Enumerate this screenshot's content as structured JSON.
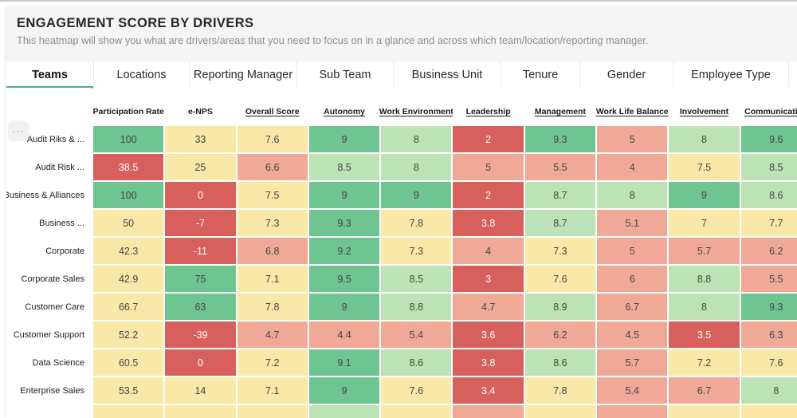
{
  "header": {
    "title": "ENGAGEMENT SCORE BY DRIVERS",
    "subtitle": "This heatmap will show you what are drivers/areas that you need to focus on in a glance and across which team/location/reporting manager."
  },
  "tabs": {
    "active": "Teams",
    "items": [
      "Teams",
      "Locations",
      "Reporting Manager",
      "Sub Team",
      "Business Unit",
      "Tenure",
      "Gender",
      "Employee Type"
    ]
  },
  "icons": {
    "overflow": "···"
  },
  "colors": {
    "accent": "#4db380",
    "green": "#6ec591",
    "lightgreen": "#bde2b5",
    "yellow": "#f9e8a7",
    "salmon": "#f0a996",
    "red": "#d8605c"
  },
  "heatmap": {
    "columns": [
      {
        "label": "Participation Rate",
        "underlined": false
      },
      {
        "label": "e-NPS",
        "underlined": false
      },
      {
        "label": "Overall Score",
        "underlined": true
      },
      {
        "label": "Autonomy",
        "underlined": true
      },
      {
        "label": "Work Environment",
        "underlined": true
      },
      {
        "label": "Leadership",
        "underlined": true
      },
      {
        "label": "Management",
        "underlined": true
      },
      {
        "label": "Work Life Balance",
        "underlined": true
      },
      {
        "label": "Involvement",
        "underlined": true
      },
      {
        "label": "Communication",
        "underlined": true
      }
    ],
    "rows": [
      {
        "label": "Audit Riks & ...",
        "cells": [
          {
            "v": "100",
            "c": "green"
          },
          {
            "v": "33",
            "c": "yellow"
          },
          {
            "v": "7.6",
            "c": "yellow"
          },
          {
            "v": "9",
            "c": "green"
          },
          {
            "v": "8",
            "c": "lightgreen"
          },
          {
            "v": "2",
            "c": "red"
          },
          {
            "v": "9.3",
            "c": "green"
          },
          {
            "v": "5",
            "c": "salmon"
          },
          {
            "v": "8",
            "c": "lightgreen"
          },
          {
            "v": "9.6",
            "c": "green"
          }
        ]
      },
      {
        "label": "Audit Risk ...",
        "cells": [
          {
            "v": "38.5",
            "c": "red"
          },
          {
            "v": "25",
            "c": "yellow"
          },
          {
            "v": "6.6",
            "c": "salmon"
          },
          {
            "v": "8.5",
            "c": "lightgreen"
          },
          {
            "v": "8",
            "c": "lightgreen"
          },
          {
            "v": "5",
            "c": "salmon"
          },
          {
            "v": "5.5",
            "c": "salmon"
          },
          {
            "v": "4",
            "c": "salmon"
          },
          {
            "v": "7.5",
            "c": "yellow"
          },
          {
            "v": "8.5",
            "c": "lightgreen"
          }
        ]
      },
      {
        "label": "Business & Alliances",
        "cells": [
          {
            "v": "100",
            "c": "green"
          },
          {
            "v": "0",
            "c": "red"
          },
          {
            "v": "7.5",
            "c": "yellow"
          },
          {
            "v": "9",
            "c": "green"
          },
          {
            "v": "9",
            "c": "green"
          },
          {
            "v": "2",
            "c": "red"
          },
          {
            "v": "8.7",
            "c": "lightgreen"
          },
          {
            "v": "8",
            "c": "lightgreen"
          },
          {
            "v": "9",
            "c": "green"
          },
          {
            "v": "8.6",
            "c": "lightgreen"
          }
        ]
      },
      {
        "label": "Business ...",
        "cells": [
          {
            "v": "50",
            "c": "yellow"
          },
          {
            "v": "-7",
            "c": "red"
          },
          {
            "v": "7.3",
            "c": "yellow"
          },
          {
            "v": "9.3",
            "c": "green"
          },
          {
            "v": "7.8",
            "c": "yellow"
          },
          {
            "v": "3.8",
            "c": "red"
          },
          {
            "v": "8.7",
            "c": "lightgreen"
          },
          {
            "v": "5.1",
            "c": "salmon"
          },
          {
            "v": "7",
            "c": "yellow"
          },
          {
            "v": "7.7",
            "c": "yellow"
          }
        ]
      },
      {
        "label": "Corporate",
        "cells": [
          {
            "v": "42.3",
            "c": "yellow"
          },
          {
            "v": "-11",
            "c": "red"
          },
          {
            "v": "6.8",
            "c": "salmon"
          },
          {
            "v": "9.2",
            "c": "green"
          },
          {
            "v": "7.3",
            "c": "yellow"
          },
          {
            "v": "4",
            "c": "salmon"
          },
          {
            "v": "7.3",
            "c": "yellow"
          },
          {
            "v": "5",
            "c": "salmon"
          },
          {
            "v": "5.7",
            "c": "salmon"
          },
          {
            "v": "6.2",
            "c": "salmon"
          }
        ]
      },
      {
        "label": "Corporate Sales",
        "cells": [
          {
            "v": "42.9",
            "c": "yellow"
          },
          {
            "v": "75",
            "c": "green"
          },
          {
            "v": "7.1",
            "c": "yellow"
          },
          {
            "v": "9.5",
            "c": "green"
          },
          {
            "v": "8.5",
            "c": "lightgreen"
          },
          {
            "v": "3",
            "c": "red"
          },
          {
            "v": "7.6",
            "c": "yellow"
          },
          {
            "v": "6",
            "c": "salmon"
          },
          {
            "v": "8.8",
            "c": "lightgreen"
          },
          {
            "v": "5.5",
            "c": "salmon"
          }
        ]
      },
      {
        "label": "Customer Care",
        "cells": [
          {
            "v": "66.7",
            "c": "yellow"
          },
          {
            "v": "63",
            "c": "green"
          },
          {
            "v": "7.8",
            "c": "yellow"
          },
          {
            "v": "9",
            "c": "green"
          },
          {
            "v": "8.8",
            "c": "lightgreen"
          },
          {
            "v": "4.7",
            "c": "salmon"
          },
          {
            "v": "8.9",
            "c": "lightgreen"
          },
          {
            "v": "6.7",
            "c": "salmon"
          },
          {
            "v": "8",
            "c": "lightgreen"
          },
          {
            "v": "9.3",
            "c": "green"
          }
        ]
      },
      {
        "label": "Customer Support",
        "cells": [
          {
            "v": "52.2",
            "c": "yellow"
          },
          {
            "v": "-39",
            "c": "red"
          },
          {
            "v": "4.7",
            "c": "salmon"
          },
          {
            "v": "4.4",
            "c": "salmon"
          },
          {
            "v": "5.4",
            "c": "salmon"
          },
          {
            "v": "3.6",
            "c": "red"
          },
          {
            "v": "6.2",
            "c": "salmon"
          },
          {
            "v": "4.5",
            "c": "salmon"
          },
          {
            "v": "3.5",
            "c": "red"
          },
          {
            "v": "6.3",
            "c": "salmon"
          }
        ]
      },
      {
        "label": "Data Science",
        "cells": [
          {
            "v": "60.5",
            "c": "yellow"
          },
          {
            "v": "0",
            "c": "red"
          },
          {
            "v": "7.2",
            "c": "yellow"
          },
          {
            "v": "9.1",
            "c": "green"
          },
          {
            "v": "8.6",
            "c": "lightgreen"
          },
          {
            "v": "3.8",
            "c": "red"
          },
          {
            "v": "8.6",
            "c": "lightgreen"
          },
          {
            "v": "5.7",
            "c": "salmon"
          },
          {
            "v": "7.2",
            "c": "yellow"
          },
          {
            "v": "7.6",
            "c": "yellow"
          }
        ]
      },
      {
        "label": "Enterprise Sales",
        "cells": [
          {
            "v": "53.5",
            "c": "yellow"
          },
          {
            "v": "14",
            "c": "yellow"
          },
          {
            "v": "7.1",
            "c": "yellow"
          },
          {
            "v": "9",
            "c": "green"
          },
          {
            "v": "7.6",
            "c": "yellow"
          },
          {
            "v": "3.4",
            "c": "red"
          },
          {
            "v": "7.8",
            "c": "yellow"
          },
          {
            "v": "5.4",
            "c": "salmon"
          },
          {
            "v": "6.7",
            "c": "salmon"
          },
          {
            "v": "8",
            "c": "lightgreen"
          }
        ]
      },
      {
        "label": "",
        "cells": [
          {
            "v": "",
            "c": "yellow"
          },
          {
            "v": "",
            "c": "yellow"
          },
          {
            "v": "",
            "c": "yellow"
          },
          {
            "v": "",
            "c": "lightgreen"
          },
          {
            "v": "",
            "c": "yellow"
          },
          {
            "v": "",
            "c": "salmon"
          },
          {
            "v": "",
            "c": "yellow"
          },
          {
            "v": "",
            "c": "salmon"
          },
          {
            "v": "",
            "c": "yellow"
          },
          {
            "v": "",
            "c": "yellow"
          }
        ]
      }
    ]
  }
}
